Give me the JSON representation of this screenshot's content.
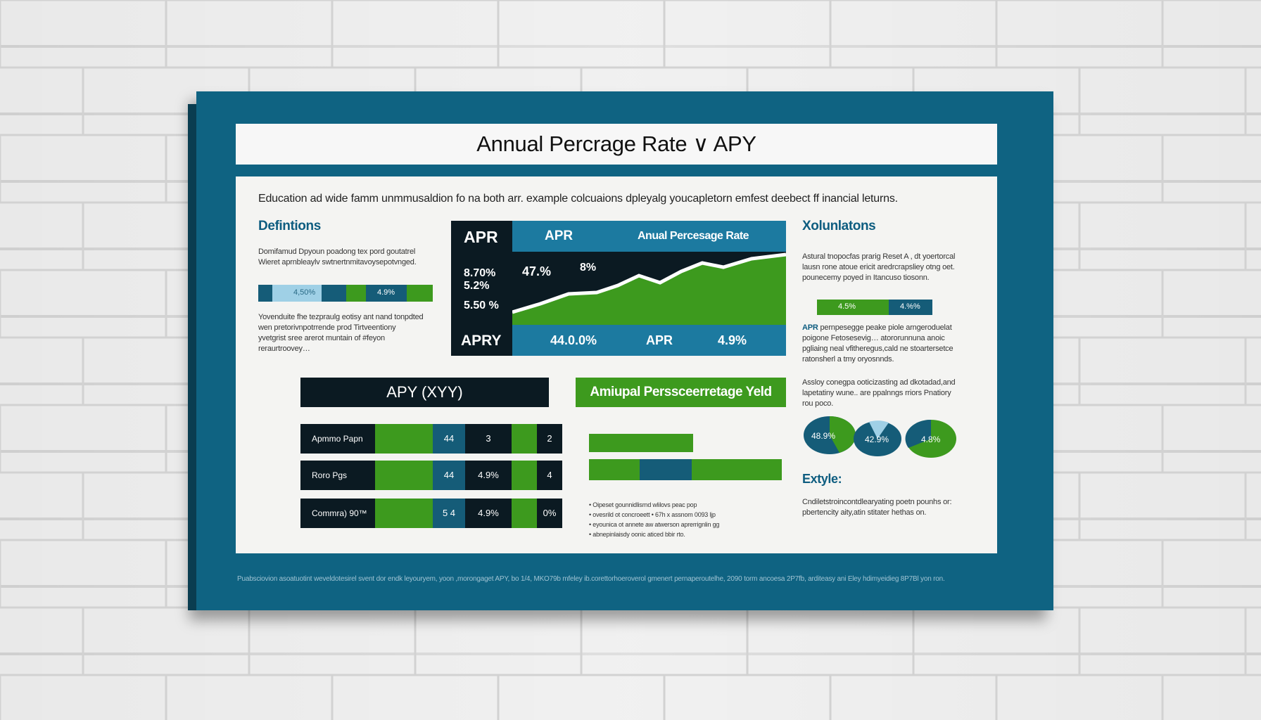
{
  "title": "Annual Percrage Rate ∨ APY",
  "intro": "Education ad wide famm unmmusaldion fo na both arr. example colcuaions dpleyalg youcapletorn emfest deebect ff inancial leturns.",
  "definitions": {
    "heading": "Defintions",
    "text1": [
      "Domifamud Dpyoun poadong tex pord goutatrel",
      "Wieret aprnbleaylv swtnertnmitavoysepotvnged."
    ],
    "bar_left": "4,50%",
    "bar_right": "4.9%",
    "text2": [
      "Yovenduite fhe tezpraulg eotisy ant nand tonpdted",
      "wen pretorivnpotrrende prod Tirtveentiony",
      "yvetgrist sree arerot muntain of #feyon",
      "reraurtroovey…"
    ]
  },
  "apr_panel": {
    "left_top": "APR",
    "left_vals": [
      "8.70%",
      "5.2%",
      "5.50 %"
    ],
    "left_bottom": "APRY",
    "header_label": "APR",
    "header_title": "Anual Percesage Rate",
    "chart_vals": [
      "47.%",
      "8%"
    ],
    "bottom_vals": [
      "44.0.0%",
      "APR",
      "4.9%"
    ]
  },
  "xolunlations": {
    "heading": "Xolunlatons",
    "text1": [
      "Astural tnopocfas prarig Reset A , dt yoertorcal",
      "lausn rone atoue ericit aredrcrapsliey otng oet.",
      "pounecemy poyed in Itancuso tiosonn."
    ],
    "bar_left": "4.5%",
    "bar_right": "4.%%",
    "text2_lead": "APR",
    "text2": [
      " pernpesegge peake piole arngeroduelat",
      "poigone Fetosesevig… atororunnuna anoic",
      "pgliaing neal vfitheregus,cald ne stoartersetce",
      "ratonsherl a tmy oryosnnds."
    ],
    "text3": [
      "Assloy conegpa ooticizasting ad dkotadad,and",
      "lapetatiny wune.. are ppalnngs rriors Pnatiory",
      "rou poco."
    ],
    "pie_labels": [
      "48.9%",
      "42.9%",
      "4.8%"
    ],
    "example_heading": "Extyle:",
    "example_text": [
      "Cndiletstroincontdlearyating poetn pounhs or:",
      "pbertencity aity,atin stitater hethas on."
    ]
  },
  "apy_table": {
    "heading": "APY (XYY)",
    "rows": [
      {
        "label": "Apmmo Papn",
        "v_blue": "44",
        "v_mid": "3",
        "v_end": "2"
      },
      {
        "label": "Roro Pgs",
        "v_blue": "44",
        "v_mid": "4.9%",
        "v_end": "4"
      },
      {
        "label": "Commra) 90™",
        "v_blue": "5 4",
        "v_mid": "4.9%",
        "v_end": "0%"
      }
    ]
  },
  "yield_panel": {
    "heading": "Amiupal Perssceerretage Yeld",
    "bullets": [
      "Oipeset gounnidlisrnd wlilovs peac pop",
      "ovesrild ot concroeett  • 67h  x assnom 0093 ljp",
      "eyounica ot annete aw atwerson aprerrignlin gg",
      "abnepinlaisdy oonic aticed bbir rto."
    ]
  },
  "footer": "Puabsciovion asoatuotint weveldotesirel svent dor endk leyouryem, yoon ,morongaget APY, bo 1/4, MKO79b mfeley ib.corettorhoeroverol gmenert pernaperoutelhe, 2090 torm ancoesa 2P7fb, arditeasy ani Eley hdimyeidieg 8P7Bl yon ron.",
  "colors": {
    "frame": "#0f6382",
    "navy": "#0b1a22",
    "green": "#3d9a1e",
    "blue": "#1c7aa0",
    "heading": "#0e5d80"
  }
}
